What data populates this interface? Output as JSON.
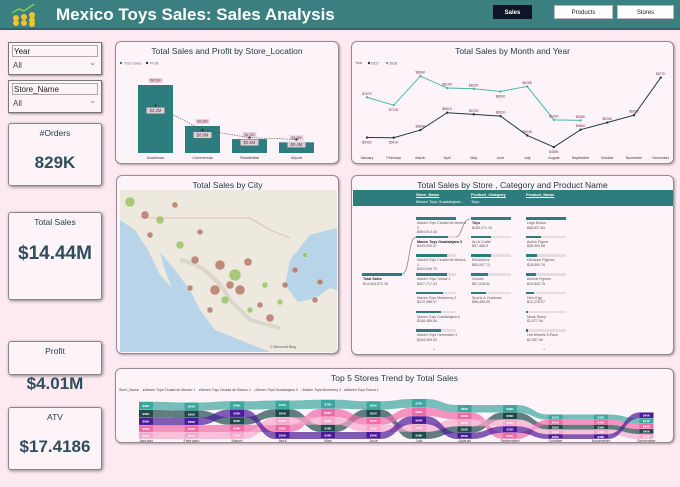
{
  "header": {
    "title": "Mexico Toys Sales: Sales Analysis",
    "logo": "coins-chart-logo",
    "nav": [
      {
        "label": "Sales",
        "active": true
      },
      {
        "label": "Products",
        "active": false
      },
      {
        "label": "Stores",
        "active": false
      }
    ]
  },
  "colors": {
    "header": "#3b7f80",
    "teal": "#2e7d7e",
    "background": "#fce9f2",
    "s2017": "#1f3b3f",
    "s2018": "#4fb3ad"
  },
  "slicers": [
    {
      "label": "Year",
      "value": "All"
    },
    {
      "label": "Store_Name",
      "value": "All"
    }
  ],
  "cards": [
    {
      "label": "#Orders",
      "value": "829K"
    },
    {
      "label": "Total Sales",
      "value": "$14.44M"
    },
    {
      "label": "Profit",
      "value": "$4.01M"
    },
    {
      "label": "ATV",
      "value": "$17.4186"
    }
  ],
  "chart_data": [
    {
      "type": "bar",
      "title": "Total Sales and Profit by Store_Location",
      "legend": [
        "Total Sales",
        "Profit"
      ],
      "categories": [
        "Downtown",
        "Commercial",
        "Residential",
        "Airport"
      ],
      "series": [
        {
          "name": "Total Sales",
          "values": [
            8.3,
            3.3,
            1.7,
            1.3
          ],
          "labels": [
            "$8.3M",
            "$3.3M",
            "$1.7M",
            "$1.3M"
          ]
        },
        {
          "name": "Profit",
          "values": [
            2.2,
            0.9,
            0.5,
            0.4
          ],
          "labels": [
            "$2.2M",
            "$0.9M",
            "$0.5M",
            "$0.4M"
          ]
        }
      ]
    },
    {
      "type": "line",
      "title": "Total Sales by Month and Year",
      "legend_title": "Year",
      "categories": [
        "January",
        "February",
        "March",
        "April",
        "May",
        "June",
        "July",
        "August",
        "September",
        "October",
        "November",
        "December"
      ],
      "series": [
        {
          "name": "2017",
          "values": [
            542,
            541,
            584,
            681,
            672,
            662,
            554,
            489,
            586,
            626,
            667,
            877
          ]
        },
        {
          "name": "2018",
          "values": [
            767,
            723,
            886,
            819,
            815,
            800,
            828,
            641,
            638,
            null,
            null,
            null
          ]
        }
      ],
      "unit": "K",
      "ylim": [
        450,
        920
      ]
    },
    {
      "type": "area",
      "title": "Top 5 Stores Trend by Total Sales",
      "legend_title": "Store_Name",
      "categories": [
        "January",
        "February",
        "March",
        "April",
        "May",
        "June",
        "July",
        "August",
        "September",
        "October",
        "November",
        "December"
      ],
      "series": [
        {
          "name": "Maven Toys Ciudad de Mexico 1",
          "values": [
            62,
            60,
            60,
            64,
            58,
            62,
            58,
            52,
            56,
            38,
            38,
            40
          ]
        },
        {
          "name": "Maven Toys Ciudad de Mexico 2",
          "values": [
            66,
            64,
            66,
            70,
            72,
            66,
            70,
            60,
            60,
            42,
            42,
            44
          ]
        },
        {
          "name": "Maven Toys Guadalajara 3",
          "values": [
            56,
            56,
            58,
            58,
            66,
            60,
            68,
            56,
            50,
            40,
            40,
            42
          ]
        },
        {
          "name": "Maven Toys Monterrey 2",
          "values": [
            54,
            54,
            56,
            60,
            62,
            58,
            60,
            54,
            54,
            38,
            38,
            40
          ]
        },
        {
          "name": "Maven Toys Toluca 1",
          "values": [
            60,
            58,
            62,
            56,
            56,
            56,
            64,
            50,
            52,
            38,
            38,
            46
          ]
        }
      ]
    }
  ],
  "map": {
    "title": "Total Sales by City",
    "attribution": "© Microsoft Bing"
  },
  "decomp": {
    "title": "Total Sales by Store , Category and Product Name",
    "columns": [
      {
        "header": "Store_Name",
        "selected": "Maven Toys Guadalajara..."
      },
      {
        "header": "Product_Category",
        "selected": "Toys"
      },
      {
        "header": "Product_Name",
        "selected": ""
      }
    ],
    "root": {
      "label": "Total Sales",
      "value": "$14,444,572.35"
    },
    "stores": [
      {
        "label": "Maven Toys Ciudad de Mexico 2",
        "value": "$554,913.45"
      },
      {
        "label": "Maven Toys Guadalajara 3",
        "value": "$449,933.37"
      },
      {
        "label": "Maven Toys Ciudad de Mexico 1",
        "value": "$433,006.73"
      },
      {
        "label": "Maven Toys Toluca 1",
        "value": "$427,717.33"
      },
      {
        "label": "Maven Toys Monterrey 2",
        "value": "$372,988.07"
      },
      {
        "label": "Maven Toys Guadalajara 4",
        "value": "$348,489.84"
      },
      {
        "label": "Maven Toys Hermosillo 3",
        "value": "$344,069.54"
      }
    ],
    "categories": [
      {
        "label": "Toys",
        "value": "$150,471.19"
      },
      {
        "label": "Art & Crafts",
        "value": "$97,488.5"
      },
      {
        "label": "Electronics",
        "value": "$80,097.73"
      },
      {
        "label": "Games",
        "value": "$67,518.62"
      },
      {
        "label": "Sports & Outdoors",
        "value": "$58,489.99"
      }
    ],
    "products": [
      {
        "label": "Lego Bricks",
        "value": "$68,627.84"
      },
      {
        "label": "Action Figure",
        "value": "$26,990.68"
      },
      {
        "label": "Dinosaur Figures",
        "value": "$18,890.76"
      },
      {
        "label": "Animal Figures",
        "value": "$16,840.78"
      },
      {
        "label": "Dino Egg",
        "value": "$12,278.97"
      },
      {
        "label": "Mock Ramp",
        "value": "$1,077.06"
      },
      {
        "label": "Hot Wheels 5-Pack",
        "value": "$1,057.66"
      }
    ]
  }
}
